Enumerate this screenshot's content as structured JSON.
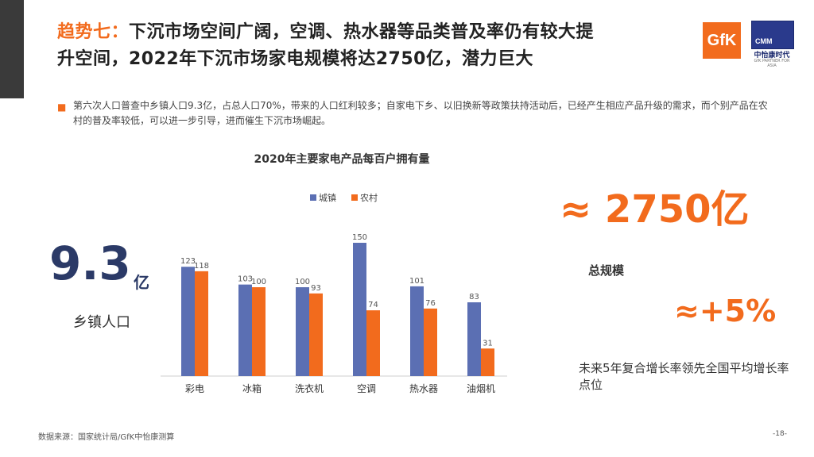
{
  "title": {
    "prefix": "趋势七：",
    "line1_rest": "下沉市场空间广阔，空调、热水器等品类普及率仍有较大提",
    "line2": "升空间，2022年下沉市场家电规模将达2750亿，潜力巨大"
  },
  "logos": {
    "gfk": "GfK",
    "cmm_abbr": "CMM",
    "cmm_cn": "中怡康时代",
    "cmm_en": "GfK PARTNER FOR ASIA"
  },
  "description": "第六次人口普查中乡镇人口9.3亿，占总人口70%，带来的人口红利较多；自家电下乡、以旧换新等政策扶持活动后，已经产生相应产品升级的需求，而个别产品在农村的普及率较低，可以进一步引导，进而催生下沉市场崛起。",
  "chart_data": {
    "type": "bar",
    "title": "2020年主要家电产品每百户拥有量",
    "categories": [
      "彩电",
      "冰箱",
      "洗衣机",
      "空调",
      "热水器",
      "油烟机"
    ],
    "series": [
      {
        "name": "城镇",
        "values": [
          123,
          103,
          100,
          150,
          101,
          83
        ],
        "color": "#5b6fb3"
      },
      {
        "name": "农村",
        "values": [
          118,
          100,
          93,
          74,
          76,
          31
        ],
        "color": "#f26b1d"
      }
    ],
    "ylim": [
      0,
      160
    ],
    "legend_position": "top-center",
    "grid": false
  },
  "stats": {
    "rural_population_value": "9.3",
    "rural_population_unit": "亿",
    "rural_population_label": "乡镇人口",
    "market_scale_value": "≈ 2750亿",
    "market_scale_label": "总规模",
    "growth_value": "≈+5%",
    "growth_label": "未来5年复合增长率领先全国平均增长率点位"
  },
  "footer": {
    "source": "数据来源：国家统计局/GfK中怡康测算",
    "page": "-18-"
  }
}
